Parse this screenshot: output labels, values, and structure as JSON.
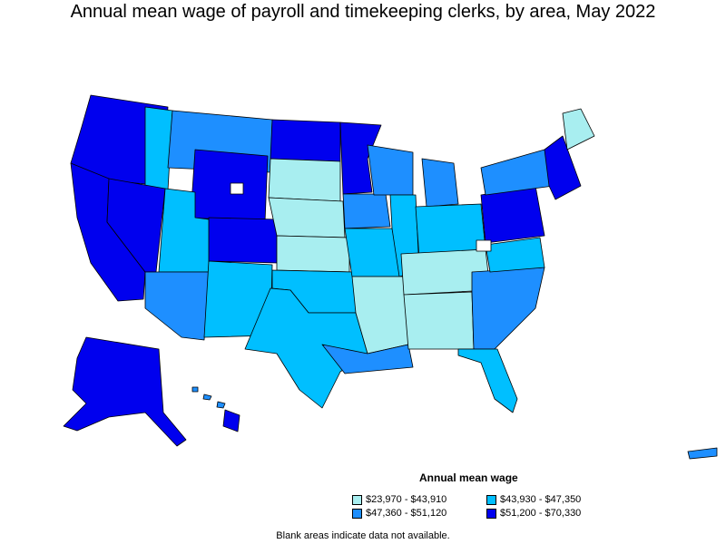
{
  "title": "Annual mean wage of payroll and timekeeping clerks, by area, May 2022",
  "legend": {
    "title": "Annual mean wage",
    "items": [
      {
        "label": "$23,970 - $43,910",
        "color": "#a8eef0"
      },
      {
        "label": "$43,930 - $47,350",
        "color": "#00bfff"
      },
      {
        "label": "$47,360 - $51,120",
        "color": "#1e8fff"
      },
      {
        "label": "$51,200 - $70,330",
        "color": "#0000ee"
      }
    ]
  },
  "note": "Blank areas indicate data not available."
}
